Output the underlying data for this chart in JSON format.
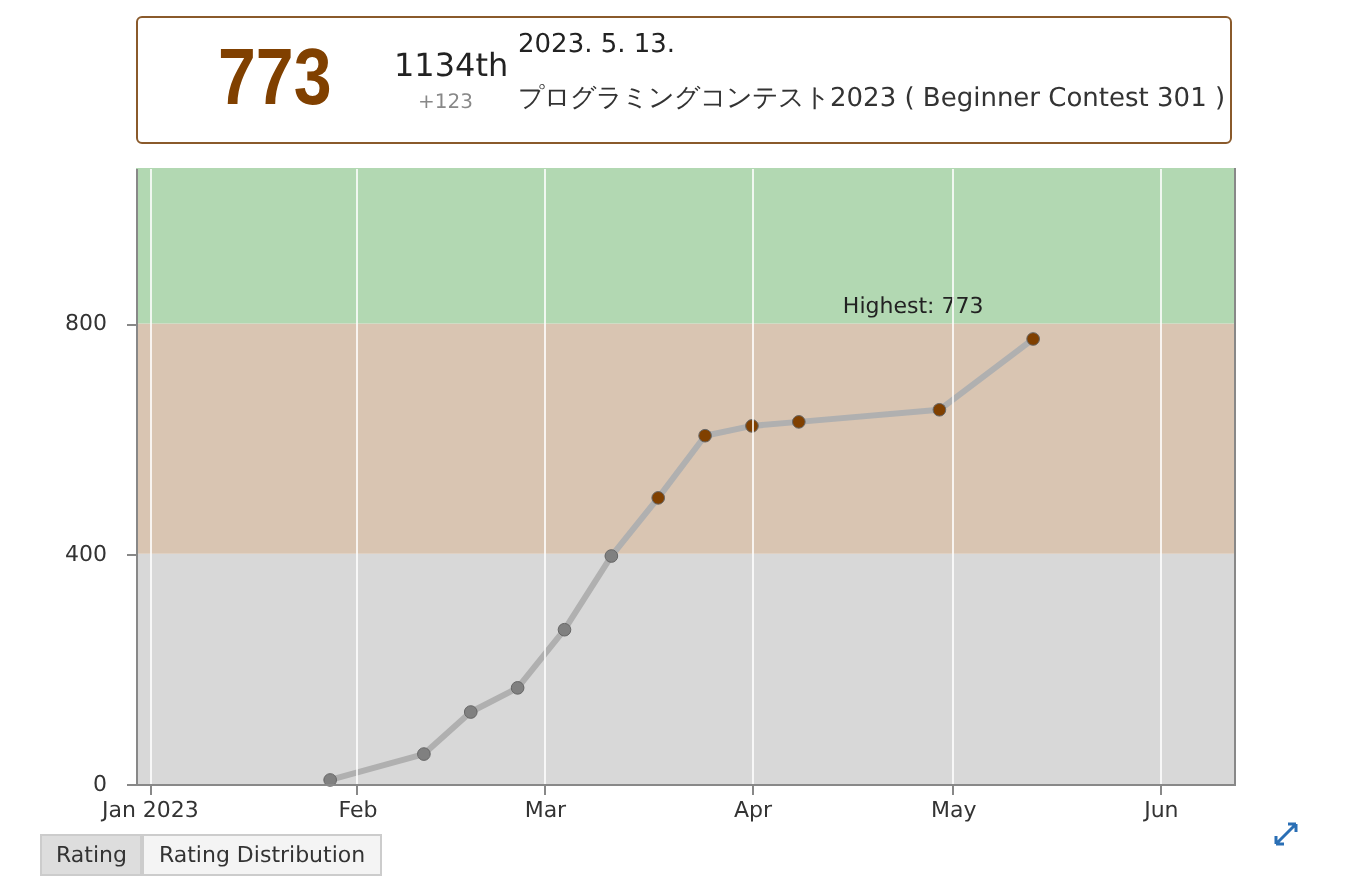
{
  "chart_data": {
    "type": "line",
    "x": [
      "2023-01-28",
      "2023-02-11",
      "2023-02-18",
      "2023-02-25",
      "2023-03-04",
      "2023-03-11",
      "2023-03-18",
      "2023-03-25",
      "2023-04-01",
      "2023-04-08",
      "2023-04-29",
      "2023-05-13"
    ],
    "series": [
      {
        "color": "#b0b0b0",
        "values": [
          7,
          52,
          125,
          167,
          268,
          396,
          497,
          605,
          622,
          629,
          650,
          773
        ],
        "colors": [
          "#808080",
          "#808080",
          "#808080",
          "#808080",
          "#808080",
          "#808080",
          "#804000",
          "#804000",
          "#804000",
          "#804000",
          "#804000",
          "#804000"
        ]
      }
    ],
    "marker": "circle",
    "xlim": [
      "2022-12-30",
      "2023-06-12"
    ],
    "xticks": [
      {
        "value": "2023-01-01",
        "label": "Jan\n2023"
      },
      {
        "value": "2023-02-01",
        "label": "Feb"
      },
      {
        "value": "2023-03-01",
        "label": "Mar"
      },
      {
        "value": "2023-04-01",
        "label": "Apr"
      },
      {
        "value": "2023-05-01",
        "label": "May"
      },
      {
        "value": "2023-06-01",
        "label": "Jun"
      }
    ],
    "ylim": [
      0,
      1070
    ],
    "yticks": [
      0,
      400,
      800
    ],
    "grid": "x",
    "bands": [
      {
        "axis": "y",
        "from": 0,
        "to": 400,
        "color": "#d8d8d8"
      },
      {
        "axis": "y",
        "from": 400,
        "to": 800,
        "color": "#d9c5b2"
      },
      {
        "axis": "y",
        "from": 800,
        "to": 1070,
        "color": "#b2d8b2"
      }
    ],
    "annotations": [
      "773",
      "1134th",
      "+123",
      "2023. 5. 13.",
      "プログラミングコンテスト2023 ( Beginner Contest 301 )",
      {
        "text": "Highest: 773",
        "x": "2023-05-13",
        "y": 773
      },
      "Rating",
      "Rating Distribution"
    ]
  }
}
